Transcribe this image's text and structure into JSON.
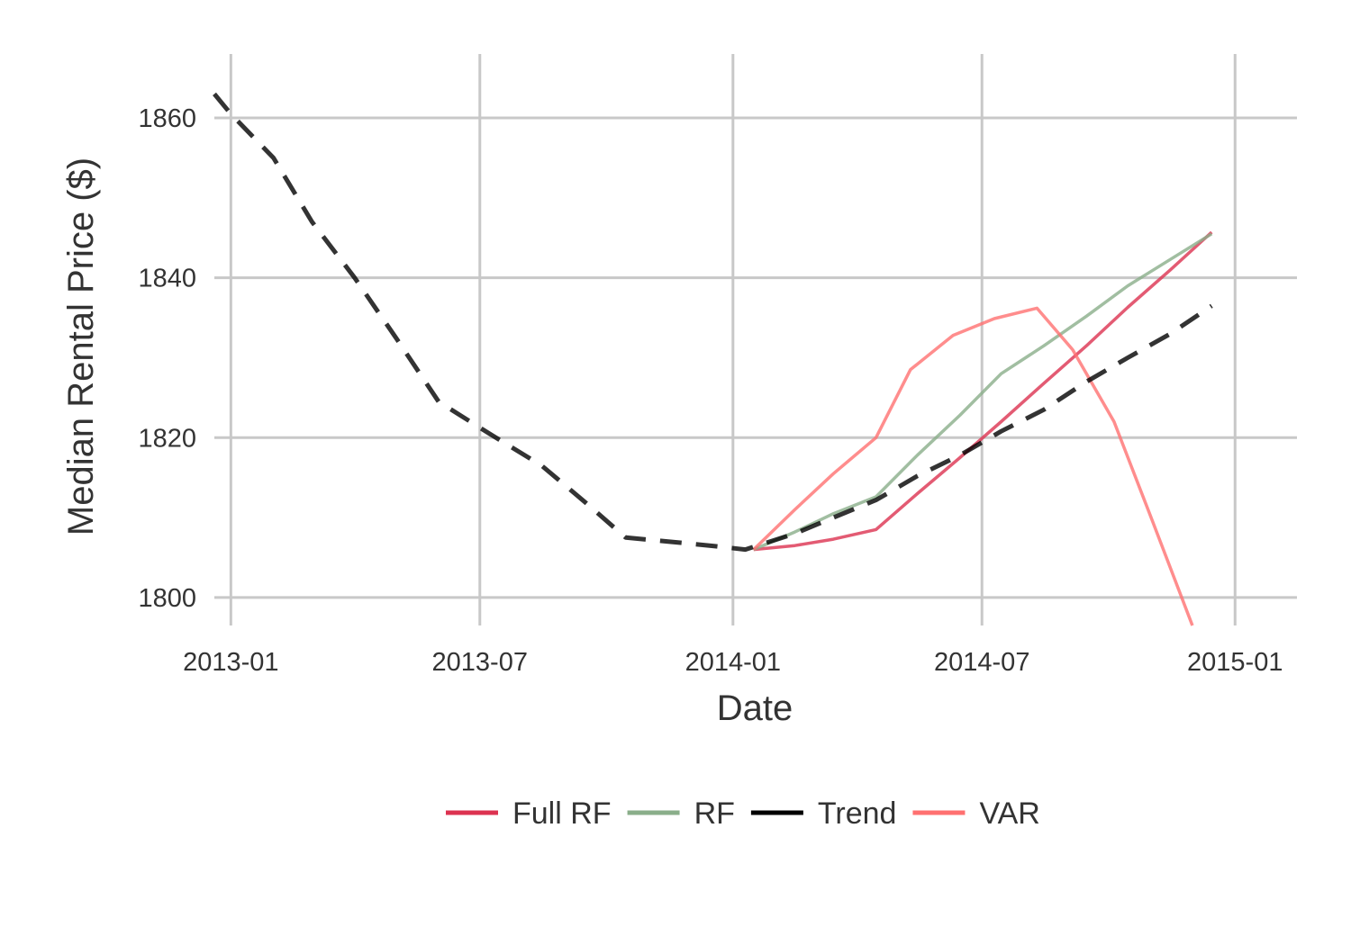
{
  "chart_data": {
    "type": "line",
    "title": "",
    "xlabel": "Date",
    "ylabel": "Median Rental Price ($)",
    "x_ticks": [
      "2013-01",
      "2013-07",
      "2014-01",
      "2014-07",
      "2015-01"
    ],
    "y_ticks": [
      1800,
      1820,
      1840,
      1860
    ],
    "xlim": [
      "2012-12-20",
      "2015-02-15"
    ],
    "ylim": [
      1796.5,
      1868
    ],
    "grid": true,
    "legend": "bottom",
    "series": [
      {
        "name": "Full RF",
        "color": "#dc3250",
        "dashed": false,
        "points": [
          [
            "2014-01-16",
            1806.0
          ],
          [
            "2014-02-15",
            1806.5
          ],
          [
            "2014-03-15",
            1807.3
          ],
          [
            "2014-04-15",
            1808.5
          ],
          [
            "2014-05-15",
            1813.0
          ],
          [
            "2014-06-15",
            1817.5
          ],
          [
            "2014-07-15",
            1822.0
          ],
          [
            "2014-08-15",
            1826.8
          ],
          [
            "2014-09-15",
            1831.5
          ],
          [
            "2014-10-15",
            1836.3
          ],
          [
            "2014-11-15",
            1841.0
          ],
          [
            "2014-12-15",
            1845.7
          ]
        ]
      },
      {
        "name": "RF",
        "color": "#8aae8a",
        "dashed": false,
        "points": [
          [
            "2014-01-16",
            1806.0
          ],
          [
            "2014-02-15",
            1808.2
          ],
          [
            "2014-03-15",
            1810.5
          ],
          [
            "2014-04-15",
            1812.6
          ],
          [
            "2014-05-15",
            1817.8
          ],
          [
            "2014-06-15",
            1822.8
          ],
          [
            "2014-07-15",
            1828.0
          ],
          [
            "2014-08-15",
            1831.5
          ],
          [
            "2014-09-15",
            1835.2
          ],
          [
            "2014-10-15",
            1839.0
          ],
          [
            "2014-11-15",
            1842.3
          ],
          [
            "2014-12-15",
            1845.5
          ]
        ]
      },
      {
        "name": "Trend",
        "color": "#000000",
        "dashed": true,
        "points": [
          [
            "2012-12-20",
            1863.0
          ],
          [
            "2013-01-01",
            1860.5
          ],
          [
            "2013-02-01",
            1855.0
          ],
          [
            "2013-03-01",
            1847.0
          ],
          [
            "2013-04-01",
            1840.0
          ],
          [
            "2013-05-01",
            1832.5
          ],
          [
            "2013-06-01",
            1824.5
          ],
          [
            "2013-07-08",
            1820.5
          ],
          [
            "2013-08-15",
            1816.5
          ],
          [
            "2013-09-15",
            1812.0
          ],
          [
            "2013-10-15",
            1807.5
          ],
          [
            "2013-11-15",
            1807.0
          ],
          [
            "2013-12-15",
            1806.5
          ],
          [
            "2014-01-10",
            1806.0
          ],
          [
            "2014-02-15",
            1808.0
          ],
          [
            "2014-03-15",
            1810.0
          ],
          [
            "2014-04-15",
            1812.2
          ],
          [
            "2014-05-15",
            1815.2
          ],
          [
            "2014-06-15",
            1817.8
          ],
          [
            "2014-07-15",
            1820.8
          ],
          [
            "2014-08-15",
            1823.5
          ],
          [
            "2014-09-15",
            1827.0
          ],
          [
            "2014-10-15",
            1830.0
          ],
          [
            "2014-11-15",
            1833.0
          ],
          [
            "2014-12-15",
            1836.5
          ]
        ]
      },
      {
        "name": "VAR",
        "color": "#ff7070",
        "dashed": false,
        "points": [
          [
            "2014-01-16",
            1806.0
          ],
          [
            "2014-02-15",
            1811.0
          ],
          [
            "2014-03-15",
            1815.5
          ],
          [
            "2014-04-15",
            1820.0
          ],
          [
            "2014-05-10",
            1828.5
          ],
          [
            "2014-06-10",
            1832.8
          ],
          [
            "2014-07-10",
            1834.9
          ],
          [
            "2014-08-10",
            1836.2
          ],
          [
            "2014-09-05",
            1831.0
          ],
          [
            "2014-10-05",
            1822.0
          ],
          [
            "2014-11-01",
            1810.0
          ],
          [
            "2014-12-01",
            1796.5
          ]
        ]
      }
    ]
  }
}
